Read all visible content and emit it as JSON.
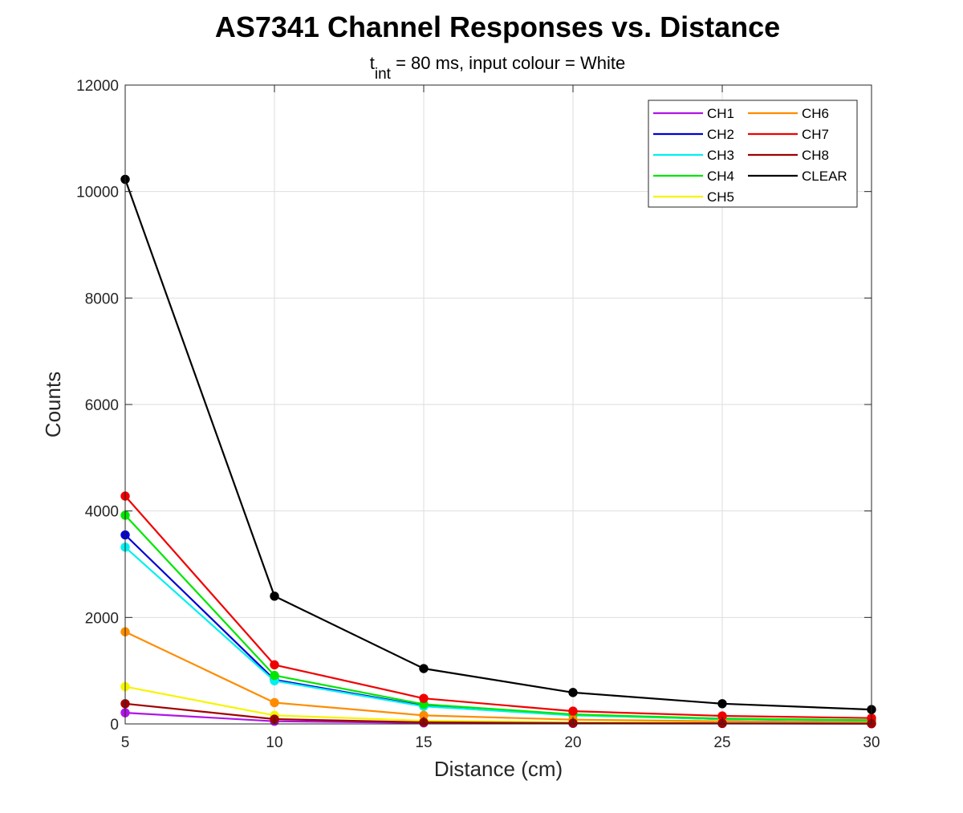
{
  "chart_data": {
    "type": "line",
    "title": "AS7341 Channel Responses vs. Distance",
    "subtitle": {
      "prefix": "t",
      "subscript": "int",
      "suffix": " = 80 ms, input colour = White"
    },
    "xlabel": "Distance (cm)",
    "ylabel": "Counts",
    "xlim": [
      5,
      30
    ],
    "ylim": [
      0,
      12000
    ],
    "xticks": [
      5,
      10,
      15,
      20,
      25,
      30
    ],
    "yticks": [
      0,
      2000,
      4000,
      6000,
      8000,
      10000,
      12000
    ],
    "grid": true,
    "legend_position": "top-right",
    "legend_columns": 2,
    "x": [
      5,
      10,
      15,
      20,
      25,
      30
    ],
    "series": [
      {
        "name": "CH1",
        "color": "#b014e8",
        "values": [
          210,
          50,
          20,
          10,
          8,
          5
        ]
      },
      {
        "name": "CH2",
        "color": "#0000d4",
        "values": [
          3550,
          830,
          340,
          170,
          90,
          60
        ]
      },
      {
        "name": "CH3",
        "color": "#00f0f0",
        "values": [
          3320,
          810,
          330,
          160,
          90,
          60
        ]
      },
      {
        "name": "CH4",
        "color": "#00e600",
        "values": [
          3920,
          910,
          370,
          180,
          100,
          70
        ]
      },
      {
        "name": "CH5",
        "color": "#f5f500",
        "values": [
          700,
          160,
          60,
          30,
          20,
          10
        ]
      },
      {
        "name": "CH6",
        "color": "#ff8c00",
        "values": [
          1730,
          400,
          160,
          80,
          50,
          30
        ]
      },
      {
        "name": "CH7",
        "color": "#f00000",
        "values": [
          4280,
          1110,
          480,
          240,
          150,
          110
        ]
      },
      {
        "name": "CH8",
        "color": "#a00000",
        "values": [
          380,
          90,
          30,
          15,
          10,
          5
        ]
      },
      {
        "name": "CLEAR",
        "color": "#000000",
        "values": [
          10230,
          2400,
          1040,
          590,
          380,
          270
        ]
      }
    ]
  }
}
